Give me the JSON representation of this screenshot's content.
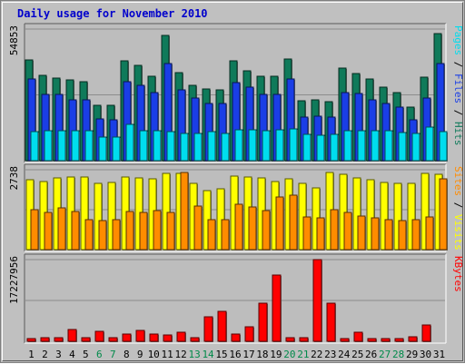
{
  "title": "Daily usage for November 2010",
  "colors": {
    "background": "#c0c0c0",
    "panel": "#bdbdbd",
    "title": "#0000cc",
    "hits": "#0f7a5a",
    "files": "#1a3ee6",
    "pages": "#00ddee",
    "visits": "#ffff00",
    "sites": "#ff8c00",
    "kbytes": "#ff0000",
    "weekend_label": "#008a4a"
  },
  "chart_data": [
    {
      "type": "bar",
      "title": "",
      "ylabel": "Pages / Files / Hits",
      "ytick": "54853",
      "ylim": [
        0,
        54853
      ],
      "categories": [
        "1",
        "2",
        "3",
        "4",
        "5",
        "6",
        "7",
        "8",
        "9",
        "10",
        "11",
        "12",
        "13",
        "14",
        "15",
        "16",
        "17",
        "18",
        "19",
        "20",
        "21",
        "22",
        "23",
        "24",
        "25",
        "26",
        "27",
        "28",
        "29",
        "30",
        "31"
      ],
      "series": [
        {
          "name": "Hits",
          "values": [
            42000,
            35500,
            34500,
            33500,
            33000,
            23000,
            23000,
            41500,
            39700,
            35000,
            52300,
            36800,
            31500,
            30000,
            29500,
            41700,
            37500,
            35000,
            35000,
            42400,
            24800,
            25200,
            24700,
            38500,
            36500,
            34000,
            30500,
            28400,
            22300,
            34700,
            53000
          ]
        },
        {
          "name": "Files",
          "values": [
            34000,
            27500,
            27500,
            25500,
            25500,
            17500,
            17000,
            33000,
            31500,
            28500,
            40500,
            29500,
            26000,
            24000,
            24000,
            32500,
            30500,
            27500,
            27500,
            34000,
            18000,
            18500,
            18000,
            28500,
            28000,
            25500,
            24000,
            22500,
            17000,
            26000,
            40500
          ]
        },
        {
          "name": "Pages",
          "values": [
            12200,
            12300,
            12500,
            12300,
            12300,
            9800,
            9700,
            15300,
            12500,
            12400,
            12000,
            11200,
            11300,
            12000,
            11300,
            12700,
            12800,
            12400,
            12800,
            13400,
            10800,
            10600,
            10900,
            12500,
            12600,
            12300,
            12300,
            11800,
            11200,
            14000,
            12200
          ]
        }
      ]
    },
    {
      "type": "bar",
      "title": "",
      "ylabel": "Sites / Visits",
      "ytick": "2738",
      "ylim": [
        0,
        2738
      ],
      "categories": [
        "1",
        "2",
        "3",
        "4",
        "5",
        "6",
        "7",
        "8",
        "9",
        "10",
        "11",
        "12",
        "13",
        "14",
        "15",
        "16",
        "17",
        "18",
        "19",
        "20",
        "21",
        "22",
        "23",
        "24",
        "25",
        "26",
        "27",
        "28",
        "29",
        "30",
        "31"
      ],
      "series": [
        {
          "name": "Visits",
          "values": [
            2400,
            2340,
            2470,
            2480,
            2490,
            2270,
            2290,
            2500,
            2460,
            2420,
            2600,
            2610,
            2260,
            2020,
            2070,
            2510,
            2490,
            2450,
            2330,
            2420,
            2260,
            2130,
            2630,
            2570,
            2460,
            2390,
            2290,
            2280,
            2280,
            2610,
            2580
          ]
        },
        {
          "name": "Sites",
          "values": [
            1360,
            1270,
            1430,
            1300,
            1020,
            1000,
            1020,
            1320,
            1270,
            1350,
            1290,
            2640,
            1500,
            1020,
            1020,
            1570,
            1450,
            1330,
            1810,
            1860,
            1130,
            1100,
            1370,
            1270,
            1150,
            1100,
            1030,
            1010,
            1030,
            1120,
            2420
          ]
        }
      ]
    },
    {
      "type": "bar",
      "title": "",
      "ylabel": "KBytes",
      "ytick": "17227956",
      "ylim": [
        0,
        17227956
      ],
      "categories": [
        "1",
        "2",
        "3",
        "4",
        "5",
        "6",
        "7",
        "8",
        "9",
        "10",
        "11",
        "12",
        "13",
        "14",
        "15",
        "16",
        "17",
        "18",
        "19",
        "20",
        "21",
        "22",
        "23",
        "24",
        "25",
        "26",
        "27",
        "28",
        "29",
        "30",
        "31"
      ],
      "series": [
        {
          "name": "KBytes",
          "values": [
            600000,
            800000,
            800000,
            2500000,
            800000,
            2100000,
            800000,
            1500000,
            2300000,
            1500000,
            1400000,
            2000000,
            800000,
            5100000,
            6400000,
            1500000,
            3000000,
            8000000,
            14000000,
            800000,
            800000,
            17227956,
            8000000,
            600000,
            2000000,
            600000,
            600000,
            600000,
            1000000,
            3500000,
            0
          ]
        }
      ]
    }
  ]
}
